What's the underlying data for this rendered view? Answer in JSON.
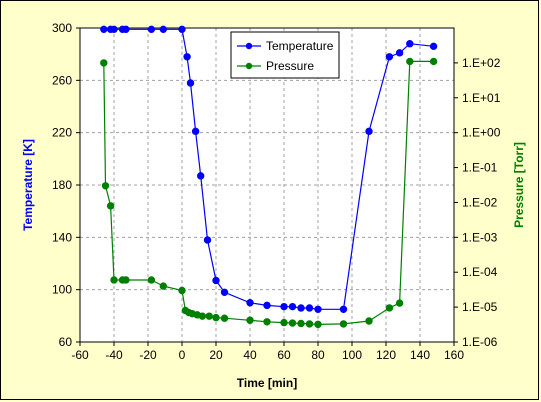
{
  "chart_data": {
    "type": "line",
    "title": "",
    "xlabel": "Time [min]",
    "ylabel_left": "Temperature [K]",
    "ylabel_right": "Pressure [Torr]",
    "xlim": [
      -60,
      160
    ],
    "xticks": [
      "-60",
      "-40",
      "-20",
      "0",
      "20",
      "40",
      "60",
      "80",
      "100",
      "120",
      "140",
      "160"
    ],
    "ylim_left": [
      60,
      300
    ],
    "yticks_left": [
      "60",
      "100",
      "140",
      "180",
      "220",
      "260",
      "300"
    ],
    "right_axis_scale": "log",
    "ylim_right": [
      1e-06,
      1000
    ],
    "yticks_right": [
      "1.E-06",
      "1.E-05",
      "1.E-04",
      "1.E-03",
      "1.E-02",
      "1.E-01",
      "1.E+00",
      "1.E+01",
      "1.E+02"
    ],
    "grid": true,
    "legend_position": "top-center",
    "series": [
      {
        "name": "Temperature",
        "axis": "left",
        "color": "#0000ff",
        "x": [
          -46,
          -42,
          -40,
          -35,
          -33,
          -18,
          -11,
          0,
          3,
          5,
          8,
          11,
          15,
          20,
          25,
          40,
          50,
          60,
          65,
          70,
          75,
          80,
          95,
          110,
          122,
          128,
          134,
          148
        ],
        "y": [
          299,
          299,
          299,
          299,
          299,
          299,
          299,
          299,
          278,
          258,
          221,
          187,
          138,
          107,
          98,
          90,
          88,
          87,
          87,
          86,
          86,
          85,
          85,
          221,
          278,
          281,
          288,
          286
        ]
      },
      {
        "name": "Pressure",
        "axis": "right",
        "color": "#008000",
        "x": [
          -46,
          -45,
          -42,
          -40,
          -35,
          -33,
          -18,
          -11,
          0,
          2,
          4,
          6,
          9,
          12,
          16,
          20,
          25,
          40,
          50,
          60,
          65,
          70,
          75,
          80,
          95,
          110,
          122,
          128,
          134,
          148
        ],
        "y": [
          100,
          0.03,
          0.008,
          6e-05,
          6e-05,
          6e-05,
          6e-05,
          4e-05,
          3e-05,
          8e-06,
          7e-06,
          6.5e-06,
          6e-06,
          5.5e-06,
          5.5e-06,
          5e-06,
          4.8e-06,
          4.2e-06,
          3.8e-06,
          3.6e-06,
          3.5e-06,
          3.4e-06,
          3.3e-06,
          3.2e-06,
          3.3e-06,
          4e-06,
          9.5e-06,
          1.3e-05,
          110,
          110
        ]
      }
    ]
  }
}
